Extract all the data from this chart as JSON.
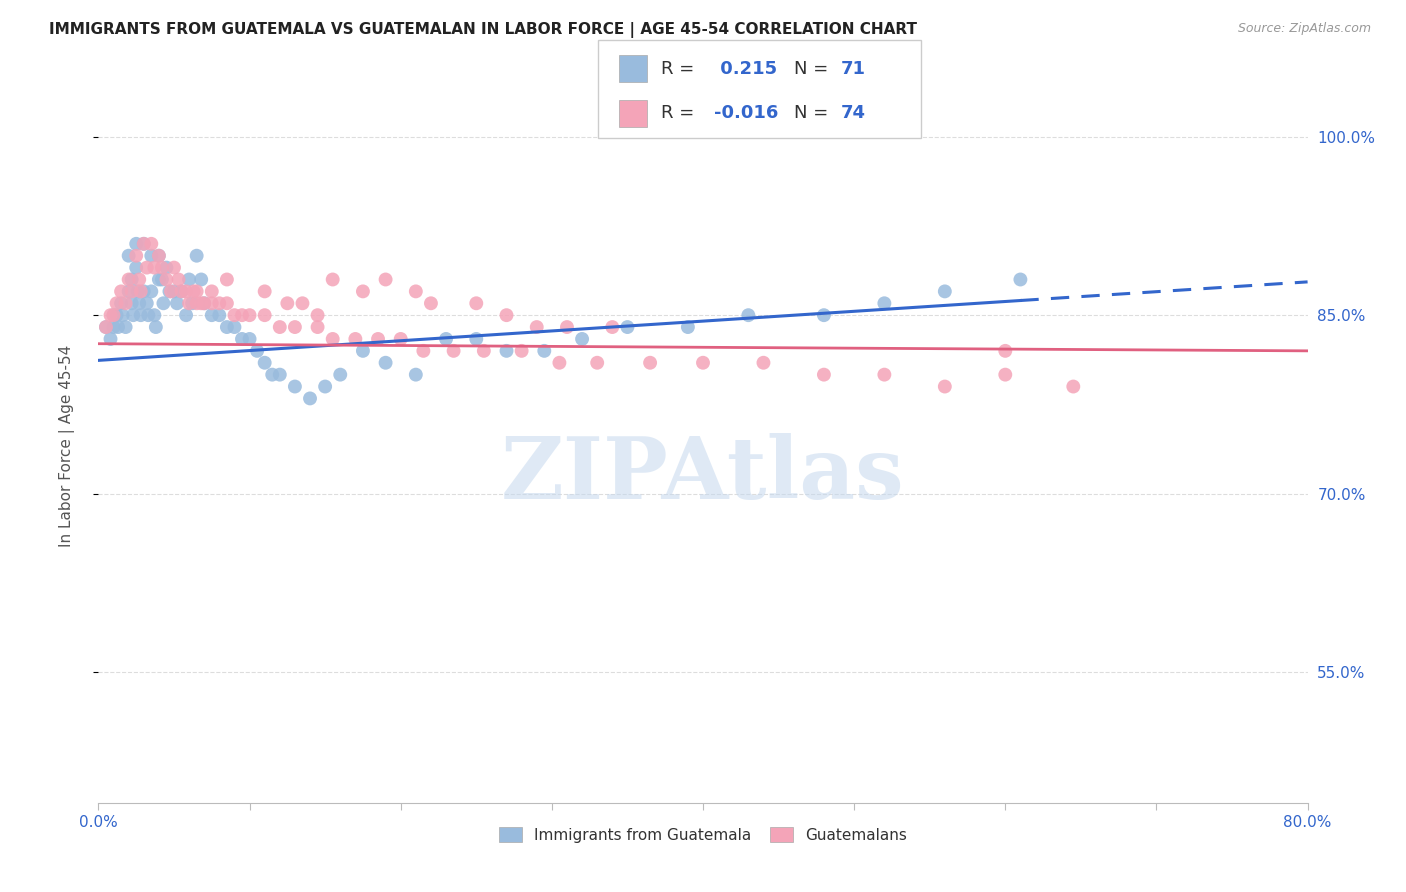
{
  "title": "IMMIGRANTS FROM GUATEMALA VS GUATEMALAN IN LABOR FORCE | AGE 45-54 CORRELATION CHART",
  "source": "Source: ZipAtlas.com",
  "ylabel": "In Labor Force | Age 45-54",
  "ytick_labels": [
    "100.0%",
    "85.0%",
    "70.0%",
    "55.0%"
  ],
  "ytick_values": [
    1.0,
    0.85,
    0.7,
    0.55
  ],
  "xlim": [
    0.0,
    0.8
  ],
  "ylim": [
    0.44,
    1.04
  ],
  "line_blue": "#3366cc",
  "line_pink": "#e06080",
  "blue_dot_color": "#99bbdd",
  "pink_dot_color": "#f4a4b8",
  "background_color": "#ffffff",
  "grid_color": "#dddddd",
  "title_fontsize": 11,
  "tick_label_color_right": "#3366cc",
  "blue_scatter_x": [
    0.005,
    0.008,
    0.01,
    0.01,
    0.012,
    0.013,
    0.015,
    0.016,
    0.018,
    0.02,
    0.02,
    0.022,
    0.022,
    0.023,
    0.025,
    0.025,
    0.026,
    0.027,
    0.028,
    0.03,
    0.03,
    0.032,
    0.033,
    0.035,
    0.035,
    0.037,
    0.038,
    0.04,
    0.04,
    0.042,
    0.043,
    0.045,
    0.047,
    0.05,
    0.052,
    0.055,
    0.058,
    0.06,
    0.062,
    0.065,
    0.068,
    0.07,
    0.075,
    0.08,
    0.085,
    0.09,
    0.095,
    0.1,
    0.105,
    0.11,
    0.115,
    0.12,
    0.13,
    0.14,
    0.15,
    0.16,
    0.175,
    0.19,
    0.21,
    0.23,
    0.25,
    0.27,
    0.295,
    0.32,
    0.35,
    0.39,
    0.43,
    0.48,
    0.52,
    0.56,
    0.61
  ],
  "blue_scatter_y": [
    0.84,
    0.83,
    0.85,
    0.84,
    0.85,
    0.84,
    0.86,
    0.85,
    0.84,
    0.9,
    0.87,
    0.88,
    0.86,
    0.85,
    0.91,
    0.89,
    0.87,
    0.86,
    0.85,
    0.91,
    0.87,
    0.86,
    0.85,
    0.9,
    0.87,
    0.85,
    0.84,
    0.9,
    0.88,
    0.88,
    0.86,
    0.89,
    0.87,
    0.87,
    0.86,
    0.87,
    0.85,
    0.88,
    0.86,
    0.9,
    0.88,
    0.86,
    0.85,
    0.85,
    0.84,
    0.84,
    0.83,
    0.83,
    0.82,
    0.81,
    0.8,
    0.8,
    0.79,
    0.78,
    0.79,
    0.8,
    0.82,
    0.81,
    0.8,
    0.83,
    0.83,
    0.82,
    0.82,
    0.83,
    0.84,
    0.84,
    0.85,
    0.85,
    0.86,
    0.87,
    0.88
  ],
  "pink_scatter_x": [
    0.005,
    0.008,
    0.01,
    0.012,
    0.015,
    0.018,
    0.02,
    0.022,
    0.025,
    0.027,
    0.028,
    0.03,
    0.032,
    0.035,
    0.037,
    0.04,
    0.042,
    0.045,
    0.048,
    0.05,
    0.053,
    0.055,
    0.058,
    0.06,
    0.063,
    0.065,
    0.068,
    0.07,
    0.075,
    0.08,
    0.085,
    0.09,
    0.095,
    0.1,
    0.11,
    0.12,
    0.13,
    0.145,
    0.155,
    0.17,
    0.185,
    0.2,
    0.215,
    0.235,
    0.255,
    0.28,
    0.305,
    0.33,
    0.365,
    0.4,
    0.44,
    0.48,
    0.52,
    0.56,
    0.6,
    0.645,
    0.34,
    0.22,
    0.25,
    0.27,
    0.29,
    0.31,
    0.19,
    0.21,
    0.155,
    0.175,
    0.135,
    0.145,
    0.125,
    0.11,
    0.085,
    0.075,
    0.065,
    0.6
  ],
  "pink_scatter_y": [
    0.84,
    0.85,
    0.85,
    0.86,
    0.87,
    0.86,
    0.88,
    0.87,
    0.9,
    0.88,
    0.87,
    0.91,
    0.89,
    0.91,
    0.89,
    0.9,
    0.89,
    0.88,
    0.87,
    0.89,
    0.88,
    0.87,
    0.87,
    0.86,
    0.87,
    0.87,
    0.86,
    0.86,
    0.86,
    0.86,
    0.86,
    0.85,
    0.85,
    0.85,
    0.85,
    0.84,
    0.84,
    0.84,
    0.83,
    0.83,
    0.83,
    0.83,
    0.82,
    0.82,
    0.82,
    0.82,
    0.81,
    0.81,
    0.81,
    0.81,
    0.81,
    0.8,
    0.8,
    0.79,
    0.8,
    0.79,
    0.84,
    0.86,
    0.86,
    0.85,
    0.84,
    0.84,
    0.88,
    0.87,
    0.88,
    0.87,
    0.86,
    0.85,
    0.86,
    0.87,
    0.88,
    0.87,
    0.86,
    0.82
  ],
  "blue_line_x0": 0.0,
  "blue_line_x_solid_end": 0.61,
  "blue_line_x1": 0.8,
  "blue_line_y0": 0.812,
  "blue_line_y1": 0.878,
  "pink_line_x0": 0.0,
  "pink_line_x1": 0.8,
  "pink_line_y0": 0.826,
  "pink_line_y1": 0.82,
  "xtick_positions": [
    0.0,
    0.1,
    0.2,
    0.3,
    0.4,
    0.5,
    0.6,
    0.7,
    0.8
  ],
  "legend_blue_label1": "R = ",
  "legend_blue_r": " 0.215",
  "legend_blue_n_label": "N = ",
  "legend_blue_n": "71",
  "legend_pink_label1": "R = ",
  "legend_pink_r": "-0.016",
  "legend_pink_n_label": "N = ",
  "legend_pink_n": "74",
  "bottom_legend_blue": "Immigrants from Guatemala",
  "bottom_legend_pink": "Guatemalans",
  "watermark_text": "ZIPAtlas",
  "watermark_color": "#c5d8ee",
  "scatter_size": 100
}
